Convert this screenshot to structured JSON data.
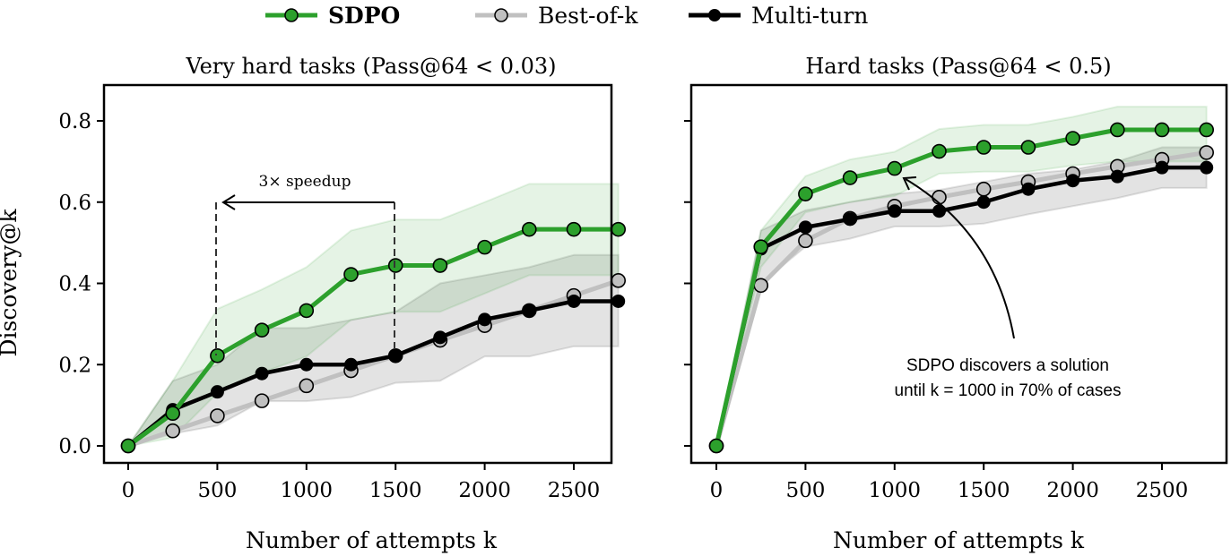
{
  "legend": {
    "items": [
      {
        "name": "SDPO",
        "color": "#2ca02c"
      },
      {
        "name": "Best-of-k",
        "color": "#c0c0c0"
      },
      {
        "name": "Multi-turn",
        "color": "#000000"
      }
    ]
  },
  "chart_data": [
    {
      "type": "line",
      "title": "Very hard tasks (Pass@64 < 0.03)",
      "xlabel": "Number of attempts k",
      "ylabel": "Discovery@k",
      "xlim": [
        -150,
        2850
      ],
      "ylim": [
        -0.03,
        0.8
      ],
      "xticks": [
        0,
        500,
        1000,
        1500,
        2000,
        2500
      ],
      "yticks": [
        "0.0",
        "0.2",
        "0.4",
        "0.6",
        "0.8"
      ],
      "grid": false,
      "x": [
        0,
        250,
        500,
        750,
        1000,
        1250,
        1500,
        1750,
        2000,
        2250,
        2500,
        2750
      ],
      "series": [
        {
          "name": "Best-of-k",
          "values": [
            0,
            0.037,
            0.074,
            0.111,
            0.148,
            0.185,
            0.222,
            0.26,
            0.296,
            0.333,
            0.37,
            0.407
          ]
        },
        {
          "name": "Multi-turn",
          "values": [
            0,
            0.089,
            0.133,
            0.178,
            0.2,
            0.2,
            0.222,
            0.267,
            0.311,
            0.333,
            0.356,
            0.356
          ],
          "band_lo": [
            0,
            0.03,
            0.05,
            0.11,
            0.11,
            0.12,
            0.155,
            0.16,
            0.22,
            0.22,
            0.245,
            0.245
          ],
          "band_hi": [
            0,
            0.16,
            0.2,
            0.29,
            0.29,
            0.31,
            0.33,
            0.4,
            0.42,
            0.44,
            0.47,
            0.47
          ]
        },
        {
          "name": "SDPO",
          "values": [
            0,
            0.08,
            0.222,
            0.285,
            0.333,
            0.422,
            0.444,
            0.444,
            0.489,
            0.533,
            0.533,
            0.533
          ],
          "band_lo": [
            0,
            0.02,
            0.13,
            0.18,
            0.22,
            0.31,
            0.33,
            0.33,
            0.375,
            0.42,
            0.42,
            0.42
          ],
          "band_hi": [
            0,
            0.16,
            0.337,
            0.385,
            0.44,
            0.53,
            0.557,
            0.557,
            0.6,
            0.645,
            0.645,
            0.645
          ]
        }
      ],
      "annotation": {
        "text": "3× speedup",
        "from_k": 1500,
        "to_k": 500
      }
    },
    {
      "type": "line",
      "title": "Hard tasks (Pass@64 < 0.5)",
      "xlabel": "Number of attempts k",
      "ylabel": "",
      "xlim": [
        -150,
        2850
      ],
      "ylim": [
        -0.03,
        0.8
      ],
      "xticks": [
        0,
        500,
        1000,
        1500,
        2000,
        2500
      ],
      "yticks": [],
      "grid": false,
      "x": [
        0,
        250,
        500,
        750,
        1000,
        1250,
        1500,
        1750,
        2000,
        2250,
        2500,
        2750
      ],
      "series": [
        {
          "name": "Best-of-k",
          "values": [
            0,
            0.395,
            0.505,
            0.56,
            0.59,
            0.612,
            0.632,
            0.65,
            0.67,
            0.688,
            0.705,
            0.722
          ]
        },
        {
          "name": "Multi-turn",
          "values": [
            0,
            0.485,
            0.538,
            0.558,
            0.578,
            0.578,
            0.6,
            0.632,
            0.653,
            0.663,
            0.685,
            0.685
          ],
          "band_lo": [
            0,
            0.4,
            0.49,
            0.51,
            0.54,
            0.54,
            0.547,
            0.57,
            0.59,
            0.61,
            0.635,
            0.635
          ],
          "band_hi": [
            0,
            0.53,
            0.58,
            0.6,
            0.62,
            0.63,
            0.65,
            0.67,
            0.68,
            0.7,
            0.735,
            0.735
          ]
        },
        {
          "name": "SDPO",
          "values": [
            0,
            0.49,
            0.62,
            0.66,
            0.683,
            0.725,
            0.735,
            0.735,
            0.757,
            0.778,
            0.778,
            0.778
          ],
          "band_lo": [
            0,
            0.44,
            0.575,
            0.6,
            0.615,
            0.67,
            0.675,
            0.675,
            0.69,
            0.7,
            0.7,
            0.7
          ],
          "band_hi": [
            0,
            0.53,
            0.664,
            0.705,
            0.724,
            0.78,
            0.79,
            0.79,
            0.81,
            0.835,
            0.835,
            0.835
          ]
        }
      ],
      "annotation": {
        "line1": "SDPO discovers a solution",
        "line2": "until k = 1000 in 70% of cases"
      }
    }
  ]
}
